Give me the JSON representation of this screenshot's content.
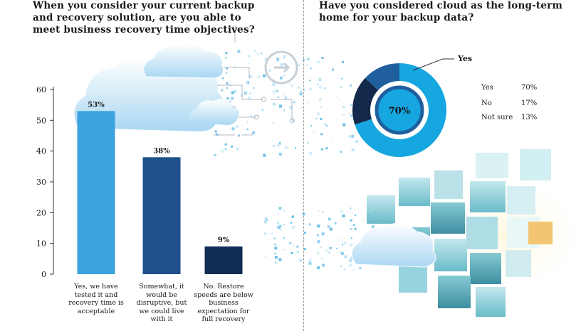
{
  "chart_data": [
    {
      "type": "bar",
      "title": "When you consider your current backup and recovery solution, are you able to meet business recovery time objectives?",
      "categories": [
        "Yes, we have tested it and recovery time is acceptable",
        "Somewhat, it would be disruptive, but we could live with it",
        "No. Restore speeds are below business expectation for full recovery"
      ],
      "values": [
        53,
        38,
        9
      ],
      "data_labels": [
        "53%",
        "38%",
        "9%"
      ],
      "yticks": [
        0,
        10,
        20,
        30,
        40,
        50,
        60
      ],
      "ylim": [
        0,
        60
      ],
      "colors": [
        "#3ba3de",
        "#1f4f8c",
        "#122d54"
      ]
    },
    {
      "type": "pie",
      "title": "Have you considered cloud as the long-term home for your backup data?",
      "categories": [
        "Yes",
        "No",
        "Not sure"
      ],
      "values": [
        70,
        17,
        13
      ],
      "value_labels": [
        "70%",
        "17%",
        "13%"
      ],
      "center_label": "70%",
      "callout_label": "Yes",
      "colors": [
        "#16a6e0",
        "#13294b",
        "#1f5f9e"
      ]
    }
  ]
}
